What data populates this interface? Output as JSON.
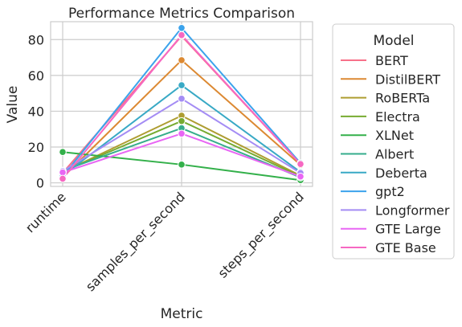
{
  "chart_data": {
    "type": "line",
    "title": "Performance Metrics Comparison",
    "xlabel": "Metric",
    "ylabel": "Value",
    "categories": [
      "runtime",
      "samples_per_second",
      "steps_per_second"
    ],
    "ylim": [
      -2,
      90
    ],
    "yticks": [
      0,
      20,
      40,
      60,
      80
    ],
    "grid": true,
    "legend_title": "Model",
    "legend_position": "outside-right",
    "series": [
      {
        "name": "BERT",
        "color": "#f77189",
        "values": [
          5.5,
          82.0,
          10.5
        ]
      },
      {
        "name": "DistilBERT",
        "color": "#dc8932",
        "values": [
          3.0,
          68.5,
          10.0
        ]
      },
      {
        "name": "RoBERTa",
        "color": "#ae9d31",
        "values": [
          6.0,
          37.5,
          4.0
        ]
      },
      {
        "name": "Electra",
        "color": "#77ab31",
        "values": [
          6.2,
          34.5,
          3.5
        ]
      },
      {
        "name": "XLNet",
        "color": "#33b04a",
        "values": [
          17.2,
          10.2,
          1.5
        ]
      },
      {
        "name": "Albert",
        "color": "#36ad8c",
        "values": [
          6.8,
          30.5,
          3.0
        ]
      },
      {
        "name": "Deberta",
        "color": "#38a9c5",
        "values": [
          4.0,
          54.5,
          6.0
        ]
      },
      {
        "name": "gpt2",
        "color": "#3ba3ec",
        "values": [
          3.5,
          86.5,
          11.0
        ]
      },
      {
        "name": "Longformer",
        "color": "#a48cf4",
        "values": [
          6.5,
          47.0,
          5.5
        ]
      },
      {
        "name": "GTE Large",
        "color": "#e866f4",
        "values": [
          5.8,
          27.5,
          3.5
        ]
      },
      {
        "name": "GTE Base",
        "color": "#f668c2",
        "values": [
          2.3,
          82.5,
          10.5
        ]
      }
    ]
  }
}
